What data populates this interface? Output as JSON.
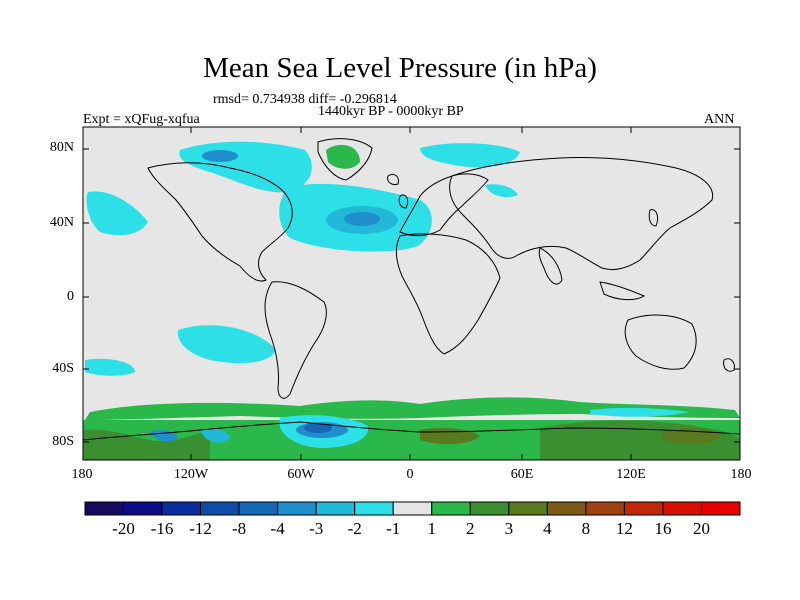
{
  "title": "Mean Sea Level Pressure (in hPa)",
  "stats_line": "rmsd= 0.734938 diff= -0.296814",
  "period": "1440kyr BP - 0000kyr BP",
  "experiment": "Expt = xQFug-xqfua",
  "season": "ANN",
  "lat_ticks": [
    "80N",
    "40N",
    "0",
    "40S",
    "80S"
  ],
  "lon_ticks": [
    "180",
    "120W",
    "60W",
    "0",
    "60E",
    "120E",
    "180"
  ],
  "colorbar": {
    "labels": [
      "-20",
      "-16",
      "-12",
      "-8",
      "-4",
      "-3",
      "-2",
      "-1",
      "1",
      "2",
      "3",
      "4",
      "8",
      "12",
      "16",
      "20"
    ],
    "colors": [
      "#160a5e",
      "#0b0b8a",
      "#0a2ea0",
      "#0d4ca8",
      "#1467b4",
      "#1e8fcc",
      "#22b8d8",
      "#2de0e8",
      "#e6e6e6",
      "#2ab84a",
      "#3a9030",
      "#5a7a20",
      "#7a5a14",
      "#a04010",
      "#c02808",
      "#d81000",
      "#e80000"
    ]
  }
}
